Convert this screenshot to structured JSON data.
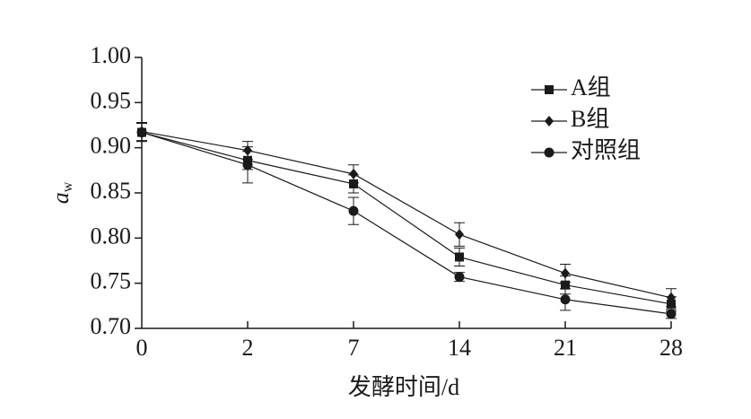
{
  "chart_data": {
    "type": "line",
    "xlabel": "发酵时间/d",
    "ylabel": "a",
    "ylabel_subscript": "w",
    "categories": [
      "0",
      "2",
      "7",
      "14",
      "21",
      "28"
    ],
    "ylim": [
      0.7,
      1.0
    ],
    "yticks": [
      {
        "value": 0.7,
        "label": "0.70"
      },
      0.75,
      {
        "value": 0.8,
        "label": "0.80"
      },
      0.85,
      {
        "value": 0.9,
        "label": "0.90"
      },
      0.95,
      {
        "value": 1.0,
        "label": "1.00"
      }
    ],
    "grid": false,
    "legend": "upper right",
    "series": [
      {
        "name": "A组",
        "color": "#1a1a1a",
        "marker": "square",
        "values": [
          0.917,
          0.886,
          0.86,
          0.779,
          0.748,
          0.727
        ],
        "errors": [
          0.01,
          0.01,
          0.01,
          0.01,
          0.01,
          0.008
        ]
      },
      {
        "name": "B组",
        "color": "#1a1a1a",
        "marker": "diamond",
        "values": [
          0.918,
          0.897,
          0.871,
          0.804,
          0.761,
          0.734
        ],
        "errors": [
          0.01,
          0.01,
          0.01,
          0.013,
          0.01,
          0.01
        ]
      },
      {
        "name": "对照组",
        "color": "#1a1a1a",
        "marker": "circle",
        "values": [
          0.917,
          0.881,
          0.83,
          0.757,
          0.732,
          0.716
        ],
        "errors": [
          0.01,
          0.02,
          0.015,
          0.005,
          0.012,
          0.005
        ]
      }
    ]
  }
}
